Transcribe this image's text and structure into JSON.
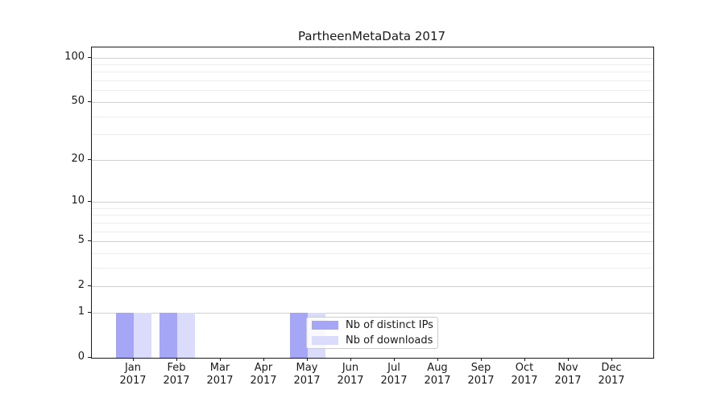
{
  "title": "PartheenMetaData 2017",
  "chart_data": {
    "type": "bar",
    "title": "PartheenMetaData 2017",
    "categories": [
      "Jan",
      "Feb",
      "Mar",
      "Apr",
      "May",
      "Jun",
      "Jul",
      "Aug",
      "Sep",
      "Oct",
      "Nov",
      "Dec"
    ],
    "year_label": "2017",
    "series": [
      {
        "name": "Nb of distinct IPs",
        "color": "#a6a6f7",
        "values": [
          1,
          1,
          0,
          0,
          1,
          0,
          0,
          0,
          0,
          0,
          0,
          0
        ]
      },
      {
        "name": "Nb of downloads",
        "color": "#dbdbfb",
        "values": [
          1,
          1,
          0,
          0,
          1,
          0,
          0,
          0,
          0,
          0,
          0,
          0
        ]
      }
    ],
    "xlabel": "",
    "ylabel": "",
    "yscale": "log1p",
    "ylim": [
      0,
      117
    ],
    "yticks": [
      0,
      1,
      2,
      5,
      10,
      20,
      50,
      100
    ],
    "minor_yticks": [
      3,
      4,
      6,
      7,
      8,
      9,
      30,
      40,
      60,
      70,
      80,
      90
    ],
    "grid": "horizontal",
    "legend_position": "inside-lower-center"
  }
}
